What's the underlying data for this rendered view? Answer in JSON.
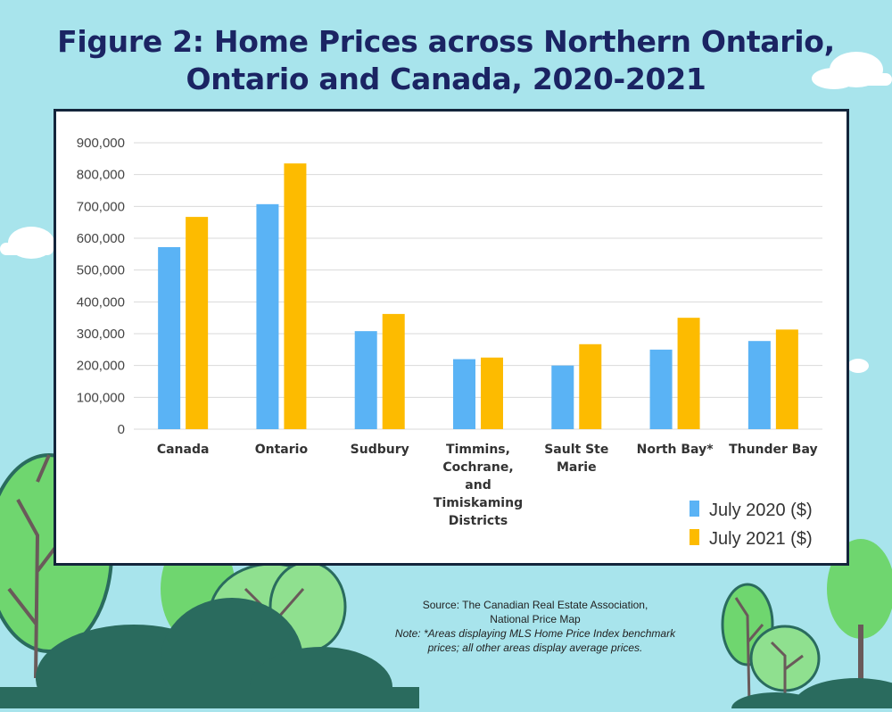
{
  "title": {
    "line1": "Figure 2: Home Prices across Northern Ontario,",
    "line2": "Ontario and Canada, 2020-2021"
  },
  "source": {
    "line1": "Source: The Canadian Real Estate Association,",
    "line2": "National Price Map",
    "note1": "Note: *Areas displaying MLS Home Price Index benchmark",
    "note2": "prices; all other areas display average prices."
  },
  "colors": {
    "background": "#a8e4ec",
    "title": "#1b2463",
    "july2020": "#5ab3f5",
    "july2021": "#fdbb00",
    "grid": "#d9d9d9",
    "tree_light": "#6fd66f",
    "tree_dark": "#2a6b5e"
  },
  "chart_data": {
    "type": "bar",
    "title": "",
    "xlabel": "",
    "ylabel": "",
    "ylim": [
      0,
      900000
    ],
    "yticks": [
      "0",
      "100,000",
      "200,000",
      "300,000",
      "400,000",
      "500,000",
      "600,000",
      "700,000",
      "800,000",
      "900,000"
    ],
    "grid": true,
    "legend_position": "bottom-right",
    "categories": [
      [
        "Canada"
      ],
      [
        "Ontario"
      ],
      [
        "Sudbury"
      ],
      [
        "Timmins,",
        "Cochrane,",
        "and",
        "Timiskaming",
        "Districts"
      ],
      [
        "Sault Ste",
        "Marie"
      ],
      [
        "North Bay*"
      ],
      [
        "Thunder Bay"
      ]
    ],
    "series": [
      {
        "name": "July 2020 ($)",
        "values": [
          572000,
          707000,
          308000,
          220000,
          200000,
          250000,
          277000
        ]
      },
      {
        "name": "July 2021 ($)",
        "values": [
          667000,
          835000,
          362000,
          225000,
          267000,
          350000,
          313000
        ]
      }
    ]
  }
}
